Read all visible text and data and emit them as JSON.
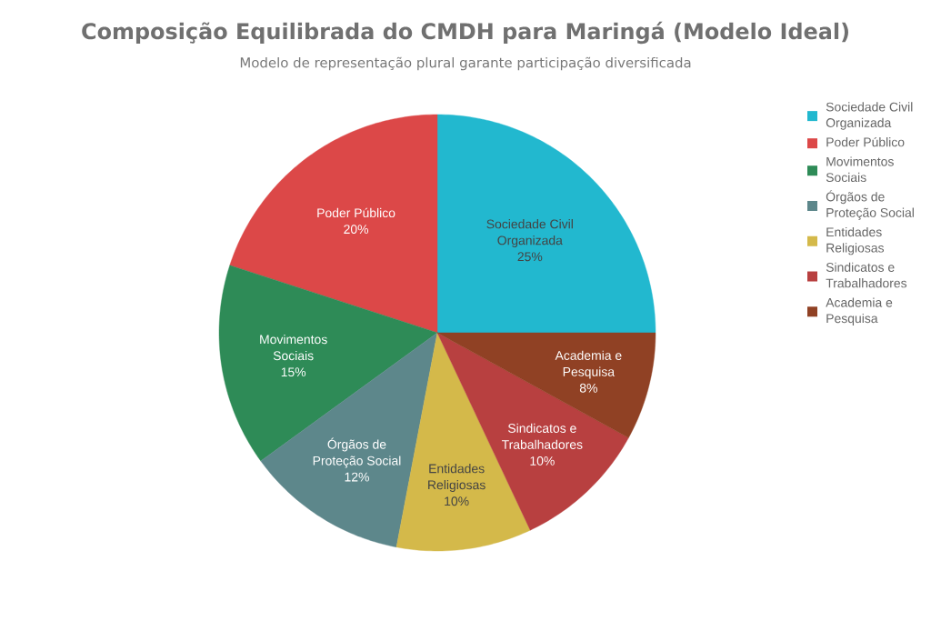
{
  "chart_data": {
    "type": "pie",
    "title": "Composição Equilibrada do CMDH para Maringá (Modelo Ideal)",
    "subtitle": "Modelo de representação plural garante participação diversificada",
    "categories": [
      "Sociedade Civil Organizada",
      "Poder Público",
      "Movimentos Sociais",
      "Órgãos de Proteção Social",
      "Entidades Religiosas",
      "Sindicatos e Trabalhadores",
      "Academia e Pesquisa"
    ],
    "values": [
      25,
      20,
      15,
      12,
      10,
      10,
      8
    ],
    "value_labels": [
      "25%",
      "20%",
      "15%",
      "12%",
      "10%",
      "10%",
      "8%"
    ],
    "colors": [
      "#22b8cf",
      "#dc4848",
      "#2e8b57",
      "#5d878b",
      "#d4b94a",
      "#b84040",
      "#904124"
    ],
    "legend": "top right"
  }
}
